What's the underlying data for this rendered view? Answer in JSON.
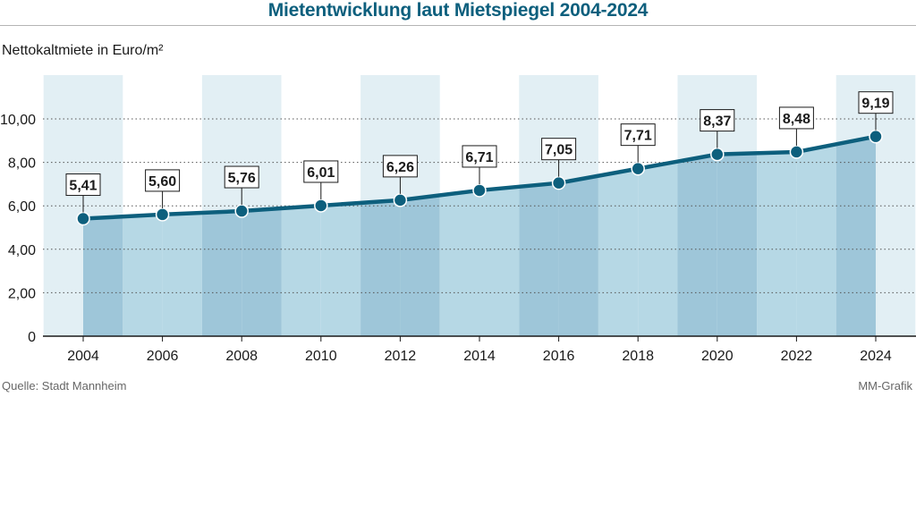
{
  "chart_data": {
    "type": "area",
    "title": "Mietentwicklung laut Mietspiegel 2004-2024",
    "ylabel": "Nettokaltmiete in Euro/m²",
    "categories": [
      "2004",
      "2006",
      "2008",
      "2010",
      "2012",
      "2014",
      "2016",
      "2018",
      "2020",
      "2022",
      "2024"
    ],
    "series": [
      {
        "values": [
          5.41,
          5.6,
          5.76,
          6.01,
          6.26,
          6.71,
          7.05,
          7.71,
          8.37,
          8.48,
          9.19
        ],
        "labels": [
          "5,41",
          "5,60",
          "5,76",
          "6,01",
          "6,26",
          "6,71",
          "7,05",
          "7,71",
          "8,37",
          "8,48",
          "9,19"
        ]
      }
    ],
    "ylim": [
      0,
      12
    ],
    "yticks": [
      0,
      2,
      4,
      6,
      8,
      10
    ],
    "ytick_labels": [
      "0",
      "2,00",
      "4,00",
      "6,00",
      "8,00",
      "10,00"
    ],
    "grid": true,
    "colors": {
      "line": "#0d5f7d",
      "area_light": "#b6d8e5",
      "area_dark": "#9ec6d9",
      "band": "#e2eff4",
      "title": "#0d5f7d"
    }
  },
  "footer": {
    "source": "Quelle: Stadt Mannheim",
    "credit": "MM-Grafik"
  }
}
